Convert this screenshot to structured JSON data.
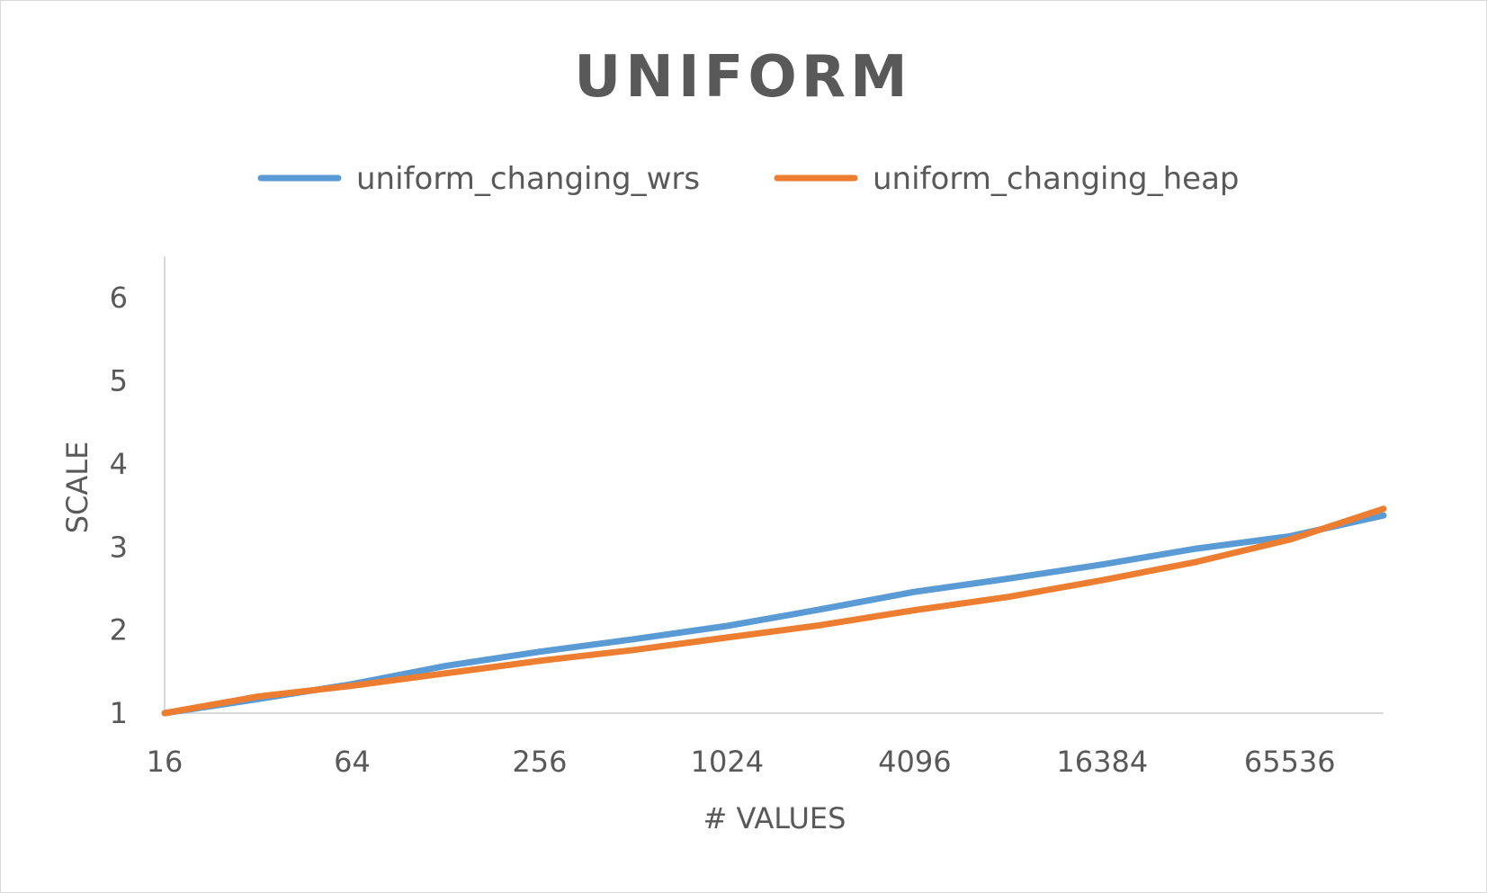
{
  "chart_data": {
    "type": "line",
    "title": "UNIFORM",
    "xlabel": "# VALUES",
    "ylabel": "SCALE",
    "x_scale": "log2",
    "x": [
      16,
      32,
      64,
      128,
      256,
      512,
      1024,
      2048,
      4096,
      8192,
      16384,
      32768,
      65536,
      131072
    ],
    "x_tick_labels": [
      "16",
      "64",
      "256",
      "1024",
      "4096",
      "16384",
      "65536"
    ],
    "x_tick_values": [
      16,
      64,
      256,
      1024,
      4096,
      16384,
      65536
    ],
    "ylim": [
      1,
      6.5
    ],
    "y_ticks": [
      1,
      2,
      3,
      4,
      5,
      6
    ],
    "grid": false,
    "legend_position": "top",
    "series": [
      {
        "name": "uniform_changing_wrs",
        "color": "#5b9bd5",
        "values": [
          1.0,
          1.17,
          1.35,
          1.57,
          1.74,
          1.89,
          2.05,
          2.25,
          2.46,
          2.62,
          2.79,
          2.98,
          3.13,
          3.38
        ]
      },
      {
        "name": "uniform_changing_heap",
        "color": "#ed7d31",
        "values": [
          1.0,
          1.2,
          1.33,
          1.48,
          1.63,
          1.76,
          1.91,
          2.06,
          2.24,
          2.4,
          2.6,
          2.82,
          3.09,
          3.46
        ]
      }
    ]
  }
}
